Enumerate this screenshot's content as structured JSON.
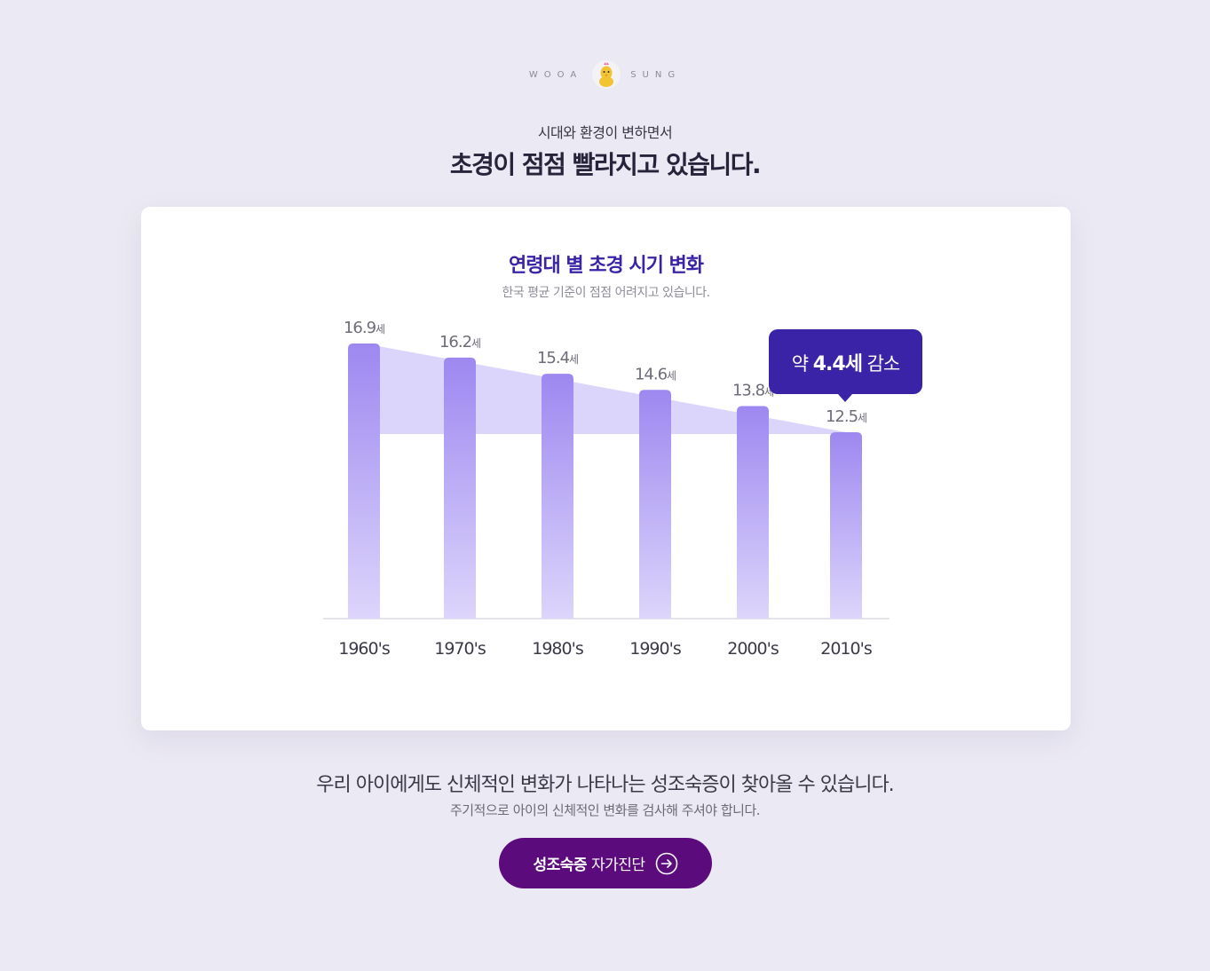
{
  "brand": {
    "left_word": "WOOA",
    "right_word": "SUNG",
    "logo_icon": "chick-mascot-icon"
  },
  "header": {
    "subtitle": "시대와 환경이 변하면서",
    "title": "초경이 점점 빨라지고 있습니다."
  },
  "chart_card": {
    "title": "연령대 별 초경 시기 변화",
    "subtitle": "한국 평균 기준이 점점 어려지고 있습니다."
  },
  "chart_data": {
    "type": "bar",
    "categories": [
      "1960's",
      "1970's",
      "1980's",
      "1990's",
      "2000's",
      "2010's"
    ],
    "values": [
      16.9,
      16.2,
      15.4,
      14.6,
      13.8,
      12.5
    ],
    "unit": "세",
    "value_labels": [
      "16.9",
      "16.2",
      "15.4",
      "14.6",
      "13.8",
      "12.5"
    ],
    "annotation": {
      "prefix": "약",
      "value": "4.4세",
      "suffix": "감소",
      "target_category": "2010's"
    },
    "colors": {
      "bar_top": "#9d88f0",
      "bar_bottom": "#ddd5fb",
      "band": "#dcd5fb",
      "tooltip": "#3a23a6"
    }
  },
  "footer": {
    "line": "우리 아이에게도 신체적인 변화가 나타나는 성조숙증이 찾아올 수 있습니다.",
    "sub": "주기적으로 아이의 신체적인 변화를 검사해 주셔야 합니다.",
    "cta": {
      "strong": "성조숙증",
      "rest": "자가진단",
      "icon": "arrow-right-circle-icon",
      "color": "#5c0b7c"
    }
  }
}
